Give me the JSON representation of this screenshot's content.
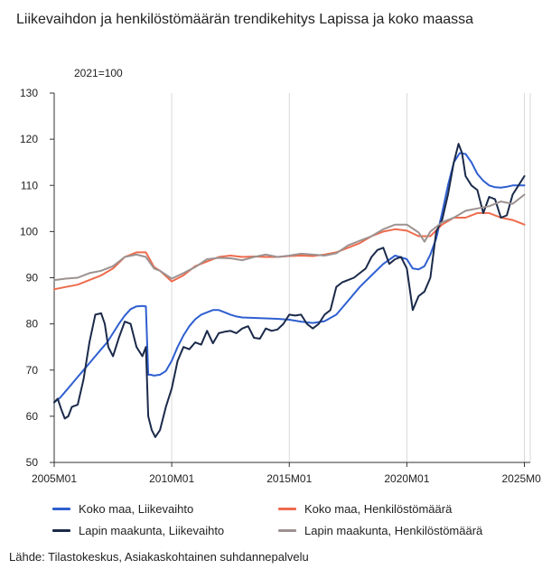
{
  "title": "Liikevaihdon ja henkilöstömäärän trendikehitys Lapissa ja koko maassa",
  "source": "Lähde: Tilastokeskus, Asiakaskohtainen suhdannepalvelu",
  "chart_data": {
    "type": "line",
    "title": "Liikevaihdon ja henkilöstömäärän trendikehitys Lapissa ja koko maassa",
    "ylabel": "2021=100",
    "xlabel": "",
    "ylim": [
      50,
      130
    ],
    "yticks": [
      50,
      60,
      70,
      80,
      90,
      100,
      110,
      120,
      130
    ],
    "xlim": [
      2005.0,
      2025.25
    ],
    "xtick_labels": [
      "2005M01",
      "2010M01",
      "2015M01",
      "2020M01",
      "2025M01"
    ],
    "grid": "vertical",
    "legend_position": "bottom",
    "series": [
      {
        "name": "Koko maa, Liikevaihto",
        "color": "#2f5fd0",
        "x": [
          2005.0,
          2005.25,
          2005.5,
          2005.75,
          2006.0,
          2006.25,
          2006.5,
          2006.75,
          2007.0,
          2007.25,
          2007.5,
          2007.75,
          2008.0,
          2008.25,
          2008.5,
          2008.75,
          2008.9,
          2009.0,
          2009.1,
          2009.25,
          2009.5,
          2009.75,
          2010.0,
          2010.25,
          2010.5,
          2010.75,
          2011.0,
          2011.25,
          2011.5,
          2011.75,
          2012.0,
          2012.25,
          2012.5,
          2012.75,
          2013.0,
          2013.5,
          2014.0,
          2014.5,
          2015.0,
          2015.5,
          2016.0,
          2016.5,
          2017.0,
          2017.5,
          2018.0,
          2018.5,
          2019.0,
          2019.5,
          2020.0,
          2020.25,
          2020.5,
          2020.75,
          2021.0,
          2021.25,
          2021.5,
          2021.75,
          2022.0,
          2022.25,
          2022.5,
          2022.75,
          2023.0,
          2023.25,
          2023.5,
          2023.75,
          2024.0,
          2024.25,
          2024.5,
          2024.75,
          2025.0
        ],
        "y": [
          63,
          64,
          65.5,
          67,
          68.5,
          70,
          71.5,
          73,
          74.5,
          76,
          78,
          80,
          81.8,
          83.2,
          83.8,
          83.9,
          83.8,
          69,
          69,
          68.8,
          69,
          69.8,
          72,
          75,
          77.5,
          79.5,
          81,
          82,
          82.5,
          83,
          83,
          82.5,
          82,
          81.6,
          81.4,
          81.3,
          81.2,
          81.1,
          80.9,
          80.5,
          80.2,
          80.6,
          82,
          85,
          88,
          90.5,
          93,
          94.8,
          94,
          92,
          91.8,
          92.5,
          95,
          98.5,
          104,
          110,
          115,
          117,
          116.8,
          115,
          112.5,
          111,
          110,
          109.6,
          109.5,
          109.7,
          110,
          110,
          110
        ]
      },
      {
        "name": "Koko maa, Henkilöstömäärä",
        "color": "#ee6b4d",
        "x": [
          2005.0,
          2005.5,
          2006.0,
          2006.5,
          2007.0,
          2007.5,
          2008.0,
          2008.5,
          2008.9,
          2009.25,
          2009.5,
          2010.0,
          2010.5,
          2011.0,
          2011.5,
          2012.0,
          2012.5,
          2013.0,
          2013.5,
          2014.0,
          2014.5,
          2015.0,
          2015.5,
          2016.0,
          2016.5,
          2017.0,
          2017.5,
          2018.0,
          2018.5,
          2019.0,
          2019.5,
          2020.0,
          2020.5,
          2021.0,
          2021.5,
          2022.0,
          2022.5,
          2023.0,
          2023.5,
          2024.0,
          2024.5,
          2025.0
        ],
        "y": [
          87.5,
          88,
          88.5,
          89.5,
          90.5,
          92,
          94.5,
          95.5,
          95.5,
          92.3,
          91.5,
          89.2,
          90.5,
          92.5,
          93.5,
          94.5,
          94.8,
          94.5,
          94.6,
          94.5,
          94.5,
          94.7,
          94.8,
          94.7,
          95,
          95.5,
          96.5,
          97.5,
          99,
          100,
          100.5,
          100.2,
          99,
          99,
          101.5,
          103,
          103,
          104,
          104,
          103,
          102.5,
          101.5
        ]
      },
      {
        "name": "Lapin maakunta, Liikevaihto",
        "color": "#1b2a4a",
        "x": [
          2005.0,
          2005.15,
          2005.3,
          2005.45,
          2005.6,
          2005.75,
          2006.0,
          2006.25,
          2006.5,
          2006.75,
          2007.0,
          2007.15,
          2007.3,
          2007.5,
          2007.75,
          2008.0,
          2008.25,
          2008.5,
          2008.75,
          2008.9,
          2009.0,
          2009.15,
          2009.3,
          2009.5,
          2009.75,
          2010.0,
          2010.25,
          2010.5,
          2010.75,
          2011.0,
          2011.25,
          2011.5,
          2011.75,
          2012.0,
          2012.25,
          2012.5,
          2012.75,
          2013.0,
          2013.25,
          2013.5,
          2013.75,
          2014.0,
          2014.25,
          2014.5,
          2014.75,
          2015.0,
          2015.25,
          2015.5,
          2015.75,
          2016.0,
          2016.25,
          2016.5,
          2016.75,
          2017.0,
          2017.25,
          2017.5,
          2017.75,
          2018.0,
          2018.25,
          2018.5,
          2018.75,
          2019.0,
          2019.25,
          2019.5,
          2019.75,
          2020.0,
          2020.25,
          2020.5,
          2020.75,
          2021.0,
          2021.25,
          2021.5,
          2021.75,
          2022.0,
          2022.2,
          2022.35,
          2022.5,
          2022.75,
          2023.0,
          2023.25,
          2023.5,
          2023.75,
          2024.0,
          2024.25,
          2024.5,
          2024.75,
          2025.0
        ],
        "y": [
          63,
          63.8,
          61.5,
          59.5,
          60,
          62,
          62.5,
          68,
          76,
          82,
          82.3,
          80,
          75,
          73,
          77,
          80.5,
          80,
          75,
          73,
          75,
          60,
          57,
          55.5,
          57,
          62,
          66,
          72,
          75,
          74.5,
          76,
          75.5,
          78.5,
          75.8,
          78,
          78.3,
          78.5,
          78,
          79,
          79.5,
          77,
          76.8,
          79,
          78.5,
          78.8,
          80,
          82,
          81.8,
          82,
          80,
          79,
          80,
          82,
          83,
          88,
          89,
          89.5,
          90,
          91,
          92,
          94.5,
          96,
          96.5,
          93,
          94,
          94.5,
          92,
          83,
          86,
          87,
          90,
          100,
          102.5,
          108,
          115,
          119,
          117,
          112,
          110,
          109,
          104,
          107.5,
          107,
          103,
          103.5,
          108,
          110,
          112
        ]
      },
      {
        "name": "Lapin maakunta, Henkilöstömäärä",
        "color": "#9c9290",
        "x": [
          2005.0,
          2005.5,
          2006.0,
          2006.5,
          2007.0,
          2007.5,
          2008.0,
          2008.5,
          2008.9,
          2009.25,
          2009.5,
          2010.0,
          2010.5,
          2011.0,
          2011.5,
          2012.0,
          2012.5,
          2013.0,
          2013.5,
          2014.0,
          2014.5,
          2015.0,
          2015.5,
          2016.0,
          2016.5,
          2017.0,
          2017.5,
          2018.0,
          2018.5,
          2019.0,
          2019.5,
          2020.0,
          2020.5,
          2020.75,
          2021.0,
          2021.5,
          2022.0,
          2022.5,
          2023.0,
          2023.5,
          2024.0,
          2024.5,
          2025.0
        ],
        "y": [
          89.5,
          89.8,
          90,
          91,
          91.5,
          92.5,
          94.5,
          95,
          94.5,
          92,
          91.5,
          89.8,
          91,
          92.3,
          94,
          94.3,
          94.2,
          93.8,
          94.5,
          95,
          94.5,
          94.8,
          95.2,
          95,
          94.8,
          95.3,
          97,
          98,
          99,
          100.5,
          101.5,
          101.5,
          99.8,
          97.8,
          100,
          102,
          103,
          104.5,
          105,
          105.5,
          106.5,
          106,
          108
        ]
      }
    ]
  }
}
